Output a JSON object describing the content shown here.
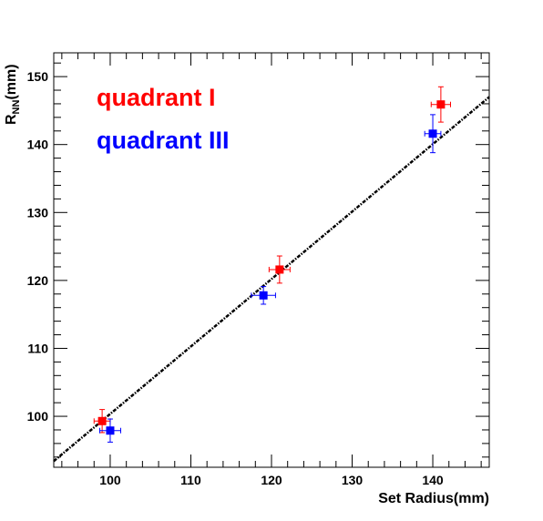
{
  "chart_data": {
    "type": "scatter",
    "xlabel": "Set Radius(mm)",
    "ylabel_main": "R",
    "ylabel_sub": "NN",
    "ylabel_unit": "(mm)",
    "xlim": [
      93.0,
      147.0
    ],
    "ylim": [
      92.5,
      153.5
    ],
    "x_ticks": [
      100,
      110,
      120,
      130,
      140
    ],
    "y_ticks": [
      100,
      110,
      120,
      130,
      140,
      150
    ],
    "grid": false,
    "legend_position": "top-left",
    "series": [
      {
        "name": "quadrant I",
        "color": "#ff0000",
        "marker": "square",
        "points": [
          {
            "x": 99.0,
            "y": 99.3,
            "xerr": 1.0,
            "yerr": 1.7
          },
          {
            "x": 121.0,
            "y": 121.6,
            "xerr": 1.3,
            "yerr": 2.0
          },
          {
            "x": 141.0,
            "y": 145.9,
            "xerr": 1.2,
            "yerr": 2.6
          }
        ]
      },
      {
        "name": "quadrant III",
        "color": "#0000ff",
        "marker": "square",
        "points": [
          {
            "x": 100.0,
            "y": 97.9,
            "xerr": 1.3,
            "yerr": 1.7
          },
          {
            "x": 119.0,
            "y": 117.8,
            "xerr": 1.5,
            "yerr": 1.3
          },
          {
            "x": 140.0,
            "y": 141.6,
            "xerr": 1.0,
            "yerr": 2.8
          }
        ]
      }
    ],
    "fit_line": {
      "style": "dashed",
      "color": "#000000",
      "x": [
        93.0,
        147.0
      ],
      "y": [
        93.4,
        147.0
      ]
    }
  }
}
